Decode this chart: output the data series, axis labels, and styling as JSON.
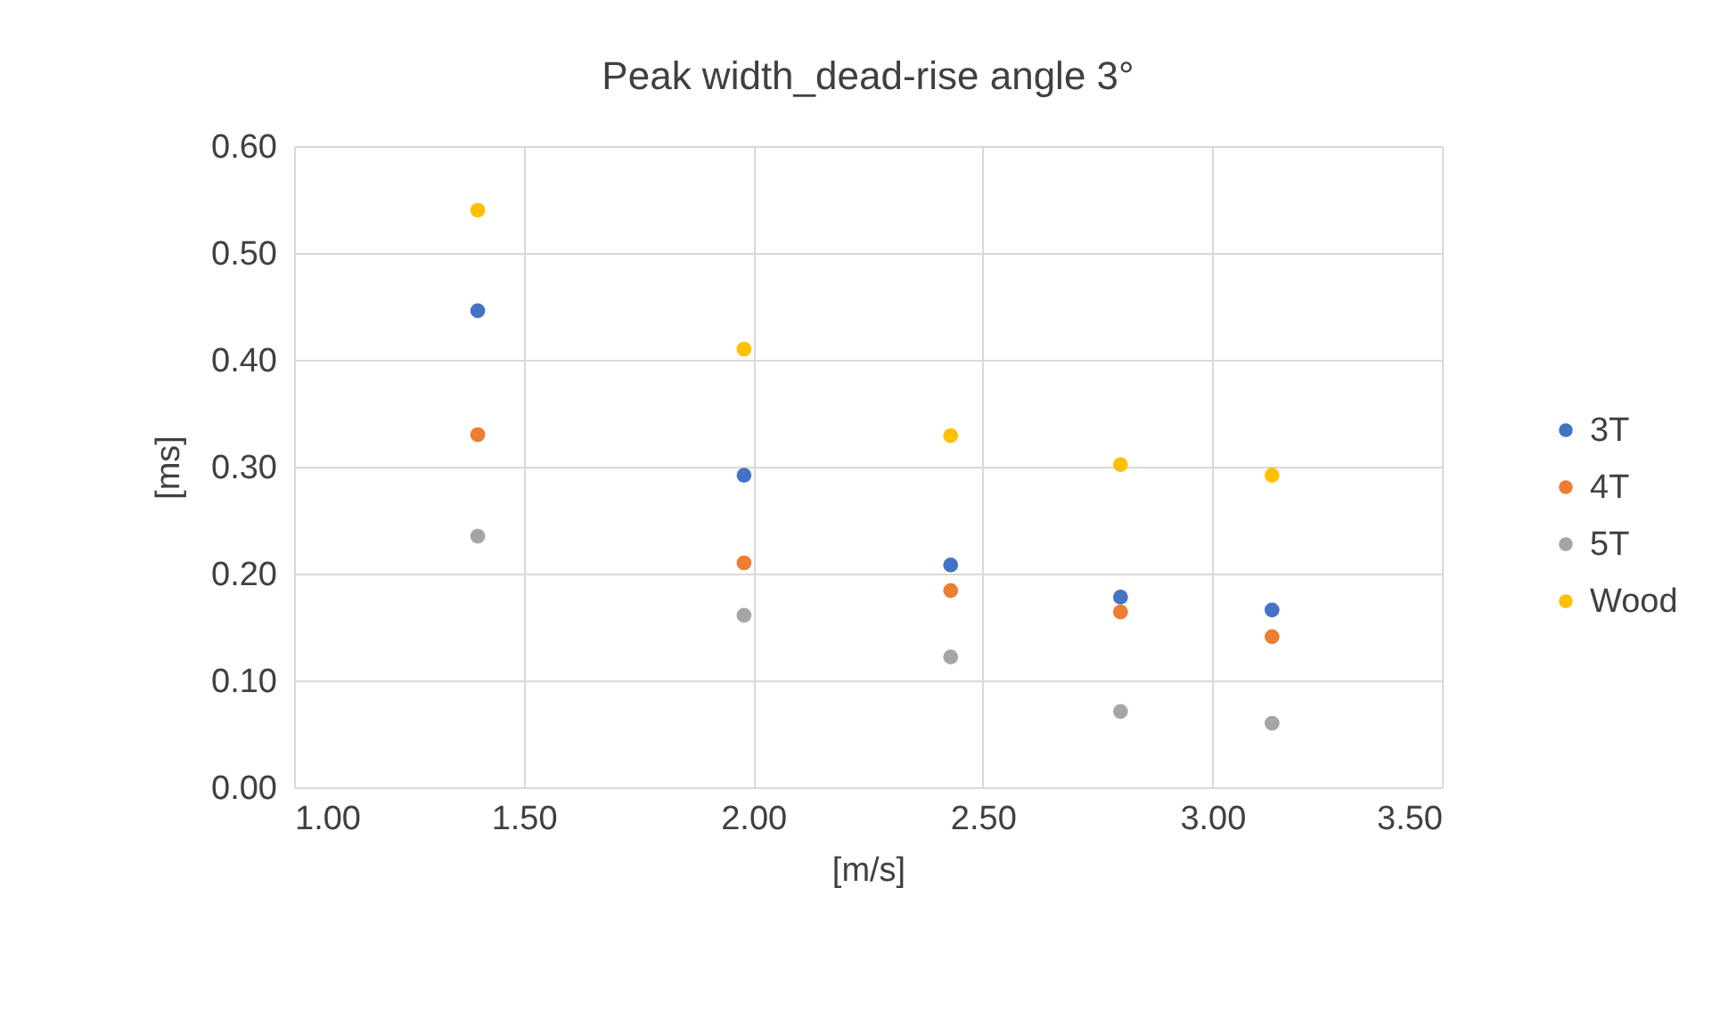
{
  "chart_data": {
    "type": "scatter",
    "title": "Peak width_dead-rise angle 3°",
    "xlabel": "[m/s]",
    "ylabel": "[ms]",
    "x": [
      1.4,
      1.98,
      2.43,
      2.8,
      3.13
    ],
    "series": [
      {
        "name": "3T",
        "color": "#4472c4",
        "values": [
          0.446,
          0.292,
          0.208,
          0.178,
          0.166
        ]
      },
      {
        "name": "4T",
        "color": "#ed7d31",
        "values": [
          0.33,
          0.21,
          0.184,
          0.164,
          0.141
        ]
      },
      {
        "name": "5T",
        "color": "#a5a5a5",
        "values": [
          0.235,
          0.161,
          0.122,
          0.071,
          0.06
        ]
      },
      {
        "name": "Wood",
        "color": "#ffc000",
        "values": [
          0.54,
          0.41,
          0.329,
          0.302,
          0.292
        ]
      }
    ],
    "xlim": [
      1.0,
      3.5
    ],
    "xticks": [
      {
        "value": 1.0,
        "label": "1.00"
      },
      {
        "value": 1.5,
        "label": "1.50"
      },
      {
        "value": 2.0,
        "label": "2.00"
      },
      {
        "value": 2.5,
        "label": "2.50"
      },
      {
        "value": 3.0,
        "label": "3.00"
      },
      {
        "value": 3.5,
        "label": "3.50"
      }
    ],
    "ylim": [
      0,
      0.6
    ],
    "yticks": [
      {
        "value": 0,
        "label": "0.00"
      },
      {
        "value": 0.1,
        "label": "0.10"
      },
      {
        "value": 0.2,
        "label": "0.20"
      },
      {
        "value": 0.3,
        "label": "0.30"
      },
      {
        "value": 0.4,
        "label": "0.40"
      },
      {
        "value": 0.5,
        "label": "0.50"
      },
      {
        "value": 0.6,
        "label": "0.60"
      }
    ],
    "grid": true,
    "legend": "right",
    "marker": "circle"
  }
}
